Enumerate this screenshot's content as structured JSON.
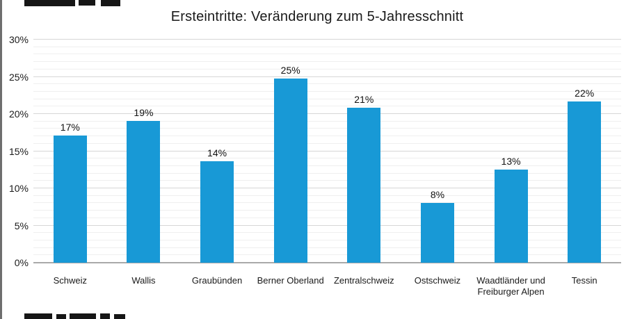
{
  "chart_data": {
    "type": "bar",
    "title": "Ersteintritte: Veränderung zum 5-Jahresschnitt",
    "categories": [
      "Schweiz",
      "Wallis",
      "Graubünden",
      "Berner Oberland",
      "Zentralschweiz",
      "Ostschweiz",
      "Waadtländer und Freiburger Alpen",
      "Tessin"
    ],
    "values": [
      17,
      19,
      14,
      25,
      21,
      8,
      13,
      22
    ],
    "value_labels": [
      "17%",
      "19%",
      "14%",
      "25%",
      "21%",
      "8%",
      "13%",
      "22%"
    ],
    "precise_values": [
      17.1,
      19.1,
      13.6,
      24.8,
      20.8,
      8.0,
      12.5,
      21.7
    ],
    "unit": "%",
    "xlabel": "",
    "ylabel": "",
    "ylim": [
      0,
      30
    ],
    "y_major_step": 5,
    "y_minor_step": 1,
    "y_tick_labels": [
      "0%",
      "5%",
      "10%",
      "15%",
      "20%",
      "25%",
      "30%"
    ],
    "grid": "horizontal major+minor",
    "legend_position": "none",
    "bar_color": "#1899d6"
  },
  "colors": {
    "bar": "#1899d6",
    "grid_major": "#d6d6d6",
    "grid_minor": "#efefef",
    "axis_baseline": "#a9a9a9",
    "text": "#1a1a1a",
    "left_border": "#6e6e6e",
    "clipped_text": "#161616"
  }
}
